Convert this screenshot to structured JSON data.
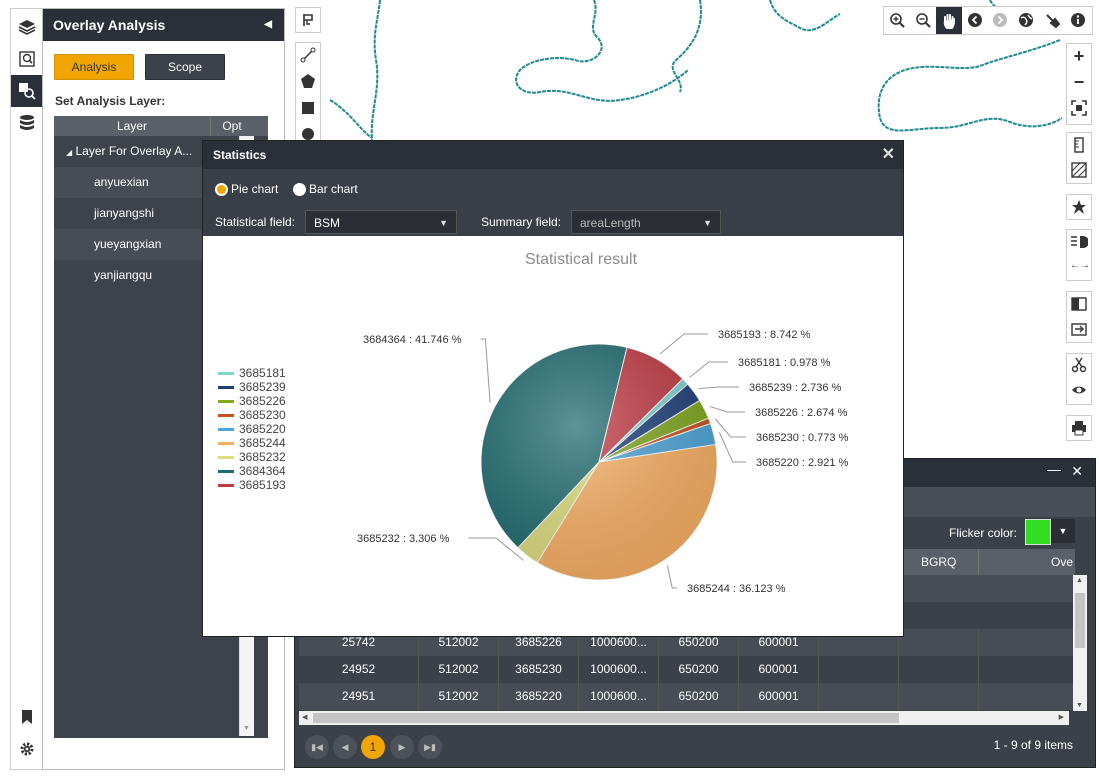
{
  "overlay_panel": {
    "title": "Overlay Analysis",
    "collapse_icon": "triangle-left-icon",
    "tabs": [
      {
        "label": "Analysis"
      },
      {
        "label": "Scope"
      }
    ],
    "set_layer_label": "Set Analysis Layer:",
    "columns": [
      "Layer",
      "Opt"
    ],
    "group_label": "Layer For Overlay A...",
    "layers": [
      "anyuexian",
      "jianyangshi",
      "yueyangxian",
      "yanjiangqu"
    ]
  },
  "left_rail": [
    "layers-icon",
    "search-layer-icon",
    "query-icon",
    "database-icon",
    "bookmark-icon",
    "gear-icon"
  ],
  "statistics": {
    "title": "Statistics",
    "chart_types": [
      {
        "label": "Pie chart",
        "selected": true
      },
      {
        "label": "Bar chart",
        "selected": false
      }
    ],
    "statistical_field_label": "Statistical field:",
    "statistical_field_value": "BSM",
    "summary_field_label": "Summary field:",
    "summary_field_value": "areaLength"
  },
  "chart_data": {
    "type": "pie",
    "title": "Statistical result",
    "legend": [
      "3685181",
      "3685239",
      "3685226",
      "3685230",
      "3685220",
      "3685244",
      "3685232",
      "3684364",
      "3685193"
    ],
    "slices": [
      {
        "name": "3685181",
        "value": 0.978,
        "label": "3685181 : 0.978 %",
        "color": "#7fd3d3"
      },
      {
        "name": "3685239",
        "value": 2.736,
        "label": "3685239 : 2.736 %",
        "color": "#1f3f7a"
      },
      {
        "name": "3685226",
        "value": 2.674,
        "label": "3685226 : 2.674 %",
        "color": "#7ea81e"
      },
      {
        "name": "3685230",
        "value": 0.773,
        "label": "3685230 : 0.773 %",
        "color": "#c9521c"
      },
      {
        "name": "3685220",
        "value": 2.921,
        "label": "3685220 : 2.921 %",
        "color": "#4ea5d9"
      },
      {
        "name": "3685244",
        "value": 36.123,
        "label": "3685244 : 36.123 %",
        "color": "#f9b063"
      },
      {
        "name": "3685232",
        "value": 3.306,
        "label": "3685232 : 3.306 %",
        "color": "#dede7e"
      },
      {
        "name": "3684364",
        "value": 41.746,
        "label": "3684364 : 41.746 %",
        "color": "#1e6b70"
      },
      {
        "name": "3685193",
        "value": 8.742,
        "label": "3685193 : 8.742 %",
        "color": "#c23a44"
      }
    ]
  },
  "attribute_table": {
    "flicker_label": "Flicker color:",
    "flicker_color": "#33dd22",
    "visible_headers": [
      "BGRQ",
      "Ove"
    ],
    "rows": [
      [
        "25742",
        "512002",
        "3685226",
        "1000600...",
        "650200",
        "600001"
      ],
      [
        "24952",
        "512002",
        "3685230",
        "1000600...",
        "650200",
        "600001"
      ],
      [
        "24951",
        "512002",
        "3685220",
        "1000600...",
        "650200",
        "600001"
      ]
    ],
    "current_page": "1",
    "page_info": "1 - 9 of 9 items"
  },
  "map_toolbar": [
    "zoom-in-icon",
    "zoom-out-icon",
    "pan-hand-icon",
    "back-icon",
    "forward-icon",
    "globe-icon",
    "clear-icon",
    "info-icon"
  ],
  "zoom": {
    "plus": "+",
    "minus": "−"
  }
}
